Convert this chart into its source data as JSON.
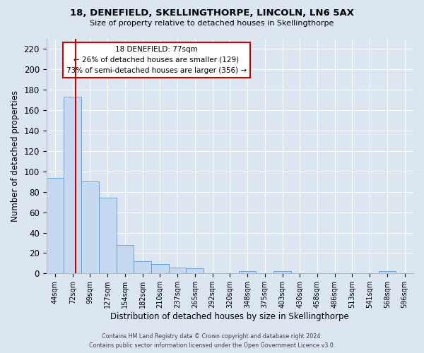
{
  "title": "18, DENEFIELD, SKELLINGTHORPE, LINCOLN, LN6 5AX",
  "subtitle": "Size of property relative to detached houses in Skellingthorpe",
  "xlabel": "Distribution of detached houses by size in Skellingthorpe",
  "ylabel": "Number of detached properties",
  "bin_labels": [
    "44sqm",
    "72sqm",
    "99sqm",
    "127sqm",
    "154sqm",
    "182sqm",
    "210sqm",
    "237sqm",
    "265sqm",
    "292sqm",
    "320sqm",
    "348sqm",
    "375sqm",
    "403sqm",
    "430sqm",
    "458sqm",
    "486sqm",
    "513sqm",
    "541sqm",
    "568sqm",
    "596sqm"
  ],
  "bar_values": [
    94,
    173,
    90,
    74,
    28,
    12,
    9,
    6,
    5,
    0,
    0,
    2,
    0,
    2,
    0,
    0,
    0,
    0,
    0,
    2,
    0
  ],
  "bar_color": "#c6d9f0",
  "bar_edge_color": "#5b9bd5",
  "vline_color": "#cc0000",
  "annotation_line1": "18 DENEFIELD: 77sqm",
  "annotation_line2": "← 26% of detached houses are smaller (129)",
  "annotation_line3": "73% of semi-detached houses are larger (356) →",
  "annotation_box_facecolor": "#ffffff",
  "annotation_box_edgecolor": "#cc0000",
  "ylim": [
    0,
    230
  ],
  "yticks": [
    0,
    20,
    40,
    60,
    80,
    100,
    120,
    140,
    160,
    180,
    200,
    220
  ],
  "background_color": "#dce6f1",
  "footer_line1": "Contains HM Land Registry data © Crown copyright and database right 2024.",
  "footer_line2": "Contains public sector information licensed under the Open Government Licence v3.0."
}
